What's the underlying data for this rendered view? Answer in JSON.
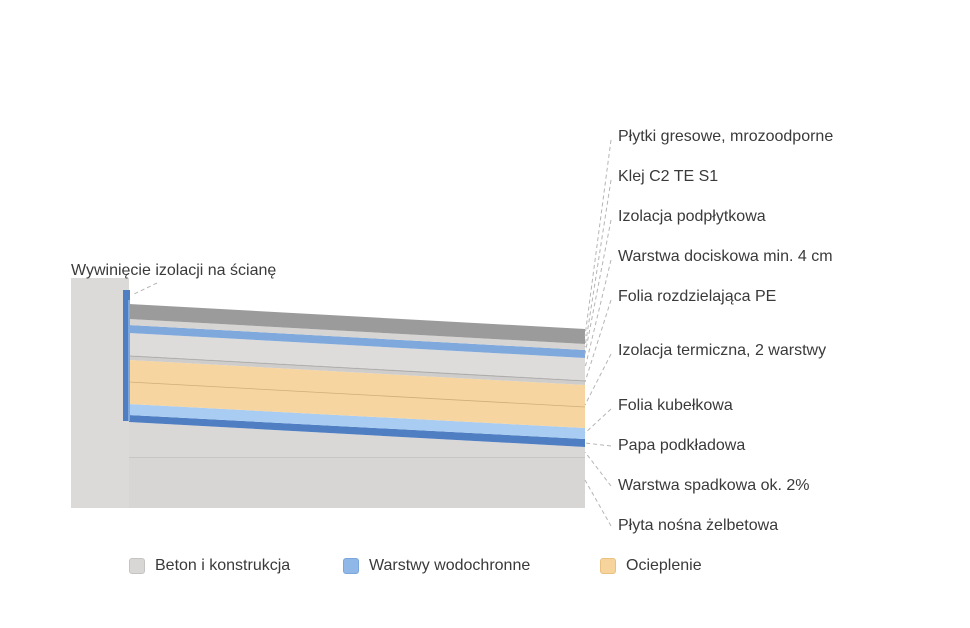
{
  "layers": [
    "Płytki gresowe, mrozoodporne",
    "Klej C2 TE S1",
    "Izolacja podpłytkowa",
    "Warstwa dociskowa min. 4 cm",
    "Folia rozdzielająca PE",
    "Izolacja termiczna, 2 warstwy",
    "Folia kubełkowa",
    "Papa podkładowa",
    "Warstwa spadkowa ok. 2%",
    "Płyta nośna żelbetowa"
  ],
  "wall_label": "Wywinięcie izolacji na ścianę",
  "legend": [
    {
      "label": "Beton i konstrukcja",
      "color": "#d9d7d5"
    },
    {
      "label": "Warstwy wodochronne",
      "color": "#8fb8e8"
    },
    {
      "label": "Ocieplenie",
      "color": "#f7d49c"
    }
  ],
  "colors": {
    "concrete": "#dad8d6",
    "wall": "#dcdad8",
    "tile": "#9a9a9a",
    "membrane_light": "#a9cdf2",
    "membrane_mid": "#7fa9dc",
    "membrane_dark": "#4f7ec2",
    "insulation": "#f7d5a0",
    "leader": "#b0b0b0"
  }
}
